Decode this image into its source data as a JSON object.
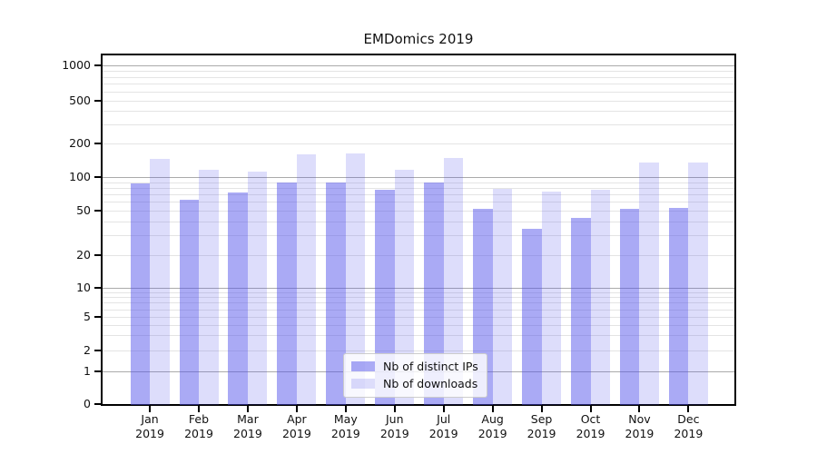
{
  "title": "EMDomics 2019",
  "chart_data": {
    "type": "bar",
    "title": "EMDomics 2019",
    "x_months": [
      "Jan",
      "Feb",
      "Mar",
      "Apr",
      "May",
      "Jun",
      "Jul",
      "Aug",
      "Sep",
      "Oct",
      "Nov",
      "Dec"
    ],
    "x_year": "2019",
    "series": [
      {
        "name": "Nb of distinct IPs",
        "color": "rgba(77,77,235,0.48)",
        "values": [
          88,
          62,
          72,
          89,
          90,
          76,
          89,
          51,
          34,
          43,
          51,
          52
        ]
      },
      {
        "name": "Nb of downloads",
        "color": "rgba(77,77,235,0.19)",
        "values": [
          146,
          116,
          112,
          160,
          162,
          117,
          148,
          78,
          74,
          76,
          135,
          135
        ]
      }
    ],
    "y_ticks": [
      0,
      1,
      2,
      5,
      10,
      20,
      50,
      100,
      200,
      500,
      1000
    ],
    "y_scale": "symlog",
    "ylim": [
      0,
      1250
    ],
    "grid": true,
    "legend_position": "lower center"
  },
  "colors": {
    "bar_base": "#4d4deb",
    "grid_major": "#ababab",
    "grid_minor": "#e4e4e4",
    "spine": "#000000",
    "text": "#111111",
    "legend_border": "#cccccc"
  }
}
